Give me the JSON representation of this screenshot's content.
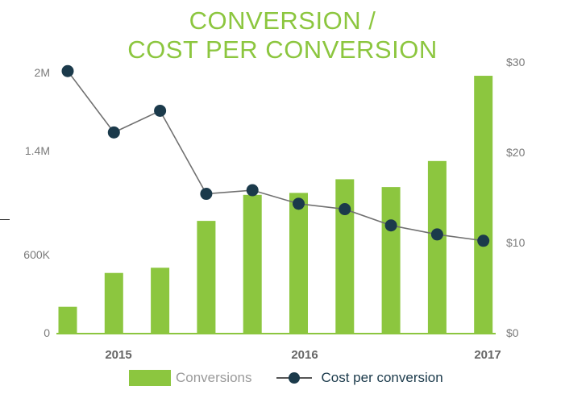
{
  "title": {
    "line1": "CONVERSION /",
    "line2": "COST PER CONVERSION"
  },
  "colors": {
    "bar": "#8cc63f",
    "line": "#707070",
    "marker": "#1b3a4b",
    "axis": "#8cc63f",
    "title": "#8cc63f"
  },
  "chart_data": {
    "type": "bar+line",
    "title": "CONVERSION / COST PER CONVERSION",
    "x_tick_labels": [
      "2015",
      "2016",
      "2017"
    ],
    "left_axis": {
      "ticks": [
        0,
        600000,
        1400000,
        2000000
      ],
      "tick_labels": [
        "0",
        "600K",
        "1.4M",
        "2M"
      ],
      "ylim": [
        0,
        2000000
      ]
    },
    "right_axis": {
      "ticks": [
        0,
        10,
        20,
        30
      ],
      "tick_labels": [
        "$0",
        "$10",
        "$20",
        "$30"
      ],
      "ylim": [
        0,
        30
      ]
    },
    "series": [
      {
        "name": "Conversions",
        "type": "bar",
        "axis": "left",
        "values": [
          200000,
          460000,
          500000,
          860000,
          1060000,
          1075000,
          1180000,
          1120000,
          1320000,
          1975000
        ]
      },
      {
        "name": "Cost per conversion",
        "type": "line",
        "axis": "right",
        "values": [
          29.0,
          22.2,
          24.6,
          15.4,
          15.8,
          14.3,
          13.7,
          11.9,
          10.9,
          10.2
        ]
      }
    ],
    "legend": {
      "position": "bottom",
      "items": [
        "Conversions",
        "Cost per conversion"
      ]
    }
  }
}
